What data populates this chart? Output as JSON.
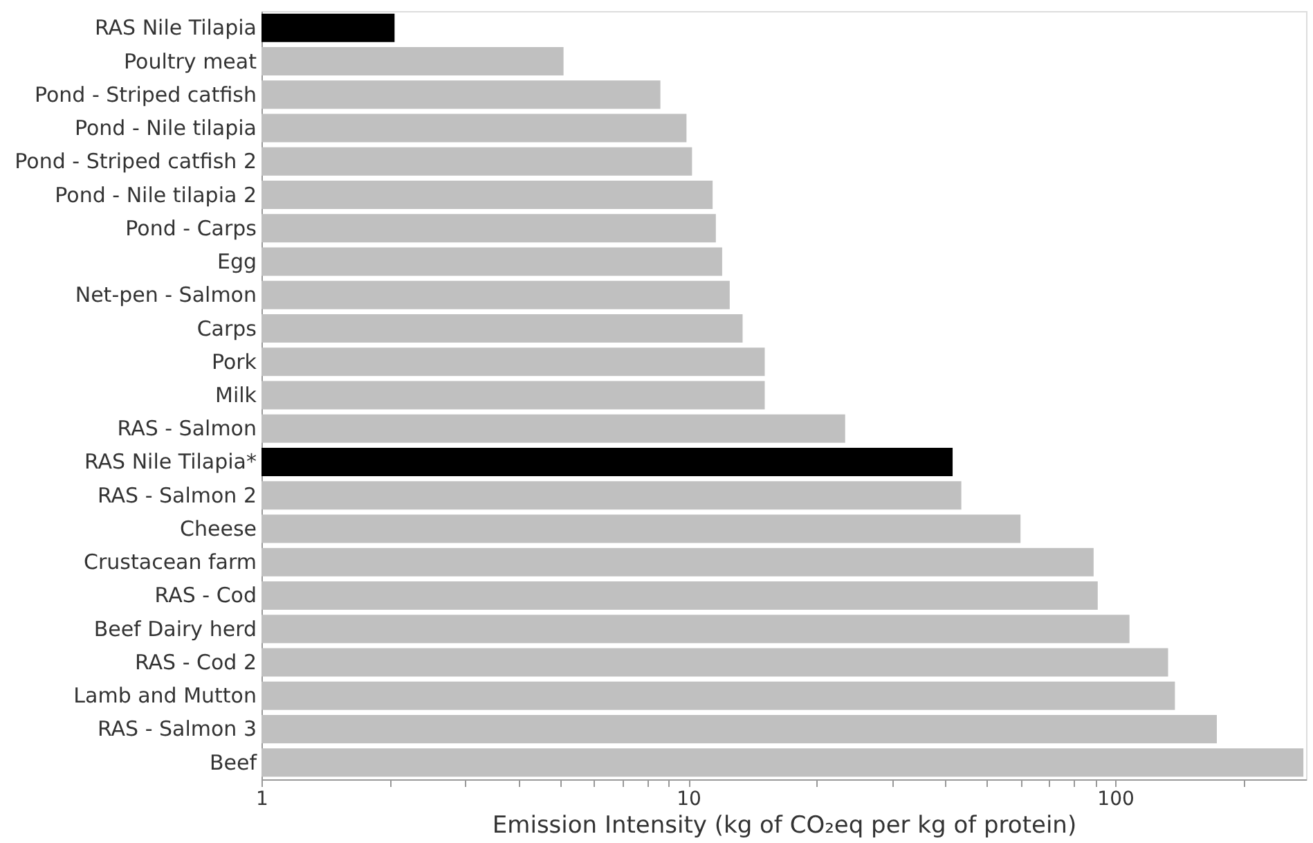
{
  "chart_data": {
    "type": "bar",
    "orientation": "horizontal",
    "log": "x",
    "xlabel": "Emission Intensity (kg of CO₂eq per kg of protein)",
    "categories": [
      "RAS Nile Tilapia",
      "Poultry meat",
      "Pond - Striped catfish",
      "Pond - Nile tilapia",
      "Pond -  Striped catfish 2",
      "Pond - Nile tilapia 2",
      "Pond - Carps",
      "Egg",
      "Net-pen - Salmon",
      "Carps",
      "Pork",
      "Milk",
      "RAS - Salmon",
      "RAS Nile Tilapia*",
      "RAS - Salmon 2",
      "Cheese",
      "Crustacean farm",
      "RAS - Cod",
      "Beef Dairy herd",
      "RAS  - Cod 2",
      "Lamb and Mutton",
      "RAS - Salmon 3",
      "Beef"
    ],
    "values": [
      2.05,
      5.1,
      8.6,
      9.9,
      10.2,
      11.4,
      11.6,
      12.0,
      12.5,
      13.4,
      15.1,
      15.1,
      23.3,
      41.6,
      43.6,
      60,
      89,
      91,
      108,
      133,
      138,
      173,
      276
    ],
    "colors": [
      "#000000",
      "#c0c0c0",
      "#c0c0c0",
      "#c0c0c0",
      "#c0c0c0",
      "#c0c0c0",
      "#c0c0c0",
      "#c0c0c0",
      "#c0c0c0",
      "#c0c0c0",
      "#c0c0c0",
      "#c0c0c0",
      "#c0c0c0",
      "#000000",
      "#c0c0c0",
      "#c0c0c0",
      "#c0c0c0",
      "#c0c0c0",
      "#c0c0c0",
      "#c0c0c0",
      "#c0c0c0",
      "#c0c0c0",
      "#c0c0c0"
    ],
    "xlim": [
      1,
      280
    ],
    "xticks": [
      1,
      {
        "value": 2,
        "label": null
      },
      {
        "value": 3,
        "label": null
      },
      {
        "value": 4,
        "label": null
      },
      {
        "value": 5,
        "label": null
      },
      {
        "value": 6,
        "label": null
      },
      {
        "value": 7,
        "label": null
      },
      {
        "value": 8,
        "label": null
      },
      {
        "value": 9,
        "label": null
      },
      10,
      {
        "value": 20,
        "label": null
      },
      {
        "value": 30,
        "label": null
      },
      {
        "value": 40,
        "label": null
      },
      {
        "value": 50,
        "label": null
      },
      {
        "value": 60,
        "label": null
      },
      {
        "value": 70,
        "label": null
      },
      {
        "value": 80,
        "label": null
      },
      {
        "value": 90,
        "label": null
      },
      100,
      {
        "value": 200,
        "label": null
      }
    ],
    "grid": false
  }
}
